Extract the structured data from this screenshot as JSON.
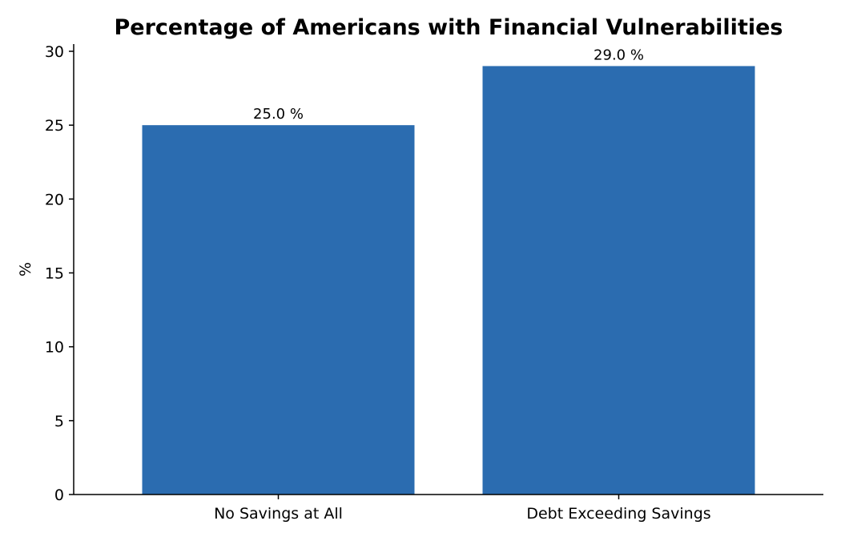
{
  "chart_data": {
    "type": "bar",
    "title": "Percentage of Americans with Financial Vulnerabilities",
    "xlabel": "",
    "ylabel": "%",
    "categories": [
      "No Savings at All",
      "Debt Exceeding Savings"
    ],
    "values": [
      25.0,
      29.0
    ],
    "data_labels": [
      "25.0 %",
      "29.0 %"
    ],
    "ylim": [
      0,
      30
    ],
    "yticks": [
      0,
      5,
      10,
      15,
      20,
      25,
      30
    ],
    "ytick_labels": [
      "0",
      "5",
      "10",
      "15",
      "20",
      "25",
      "30"
    ],
    "bar_color": "#2b6cb0",
    "grid": false,
    "legend": "none"
  }
}
